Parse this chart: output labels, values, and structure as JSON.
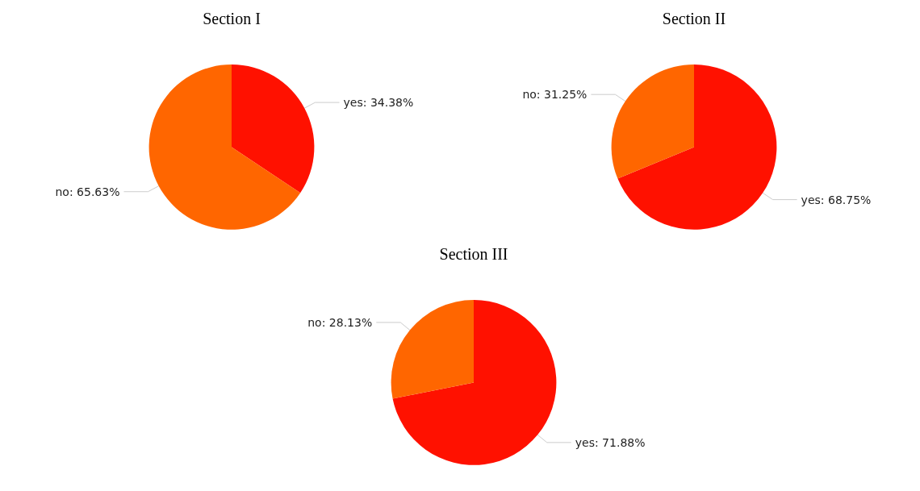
{
  "chart_data": [
    {
      "type": "pie",
      "title": "Section I",
      "categories": [
        "yes",
        "no"
      ],
      "values": [
        34.38,
        65.63
      ],
      "colors": [
        "#ff1100",
        "#ff6600"
      ],
      "value_labels": [
        "34.38%",
        "65.63%"
      ]
    },
    {
      "type": "pie",
      "title": "Section II",
      "categories": [
        "yes",
        "no"
      ],
      "values": [
        68.75,
        31.25
      ],
      "colors": [
        "#ff1100",
        "#ff6600"
      ],
      "value_labels": [
        "68.75%",
        "31.25%"
      ]
    },
    {
      "type": "pie",
      "title": "Section III",
      "categories": [
        "yes",
        "no"
      ],
      "values": [
        71.88,
        28.13
      ],
      "colors": [
        "#ff1100",
        "#ff6600"
      ],
      "value_labels": [
        "71.88%",
        "28.13%"
      ]
    }
  ]
}
